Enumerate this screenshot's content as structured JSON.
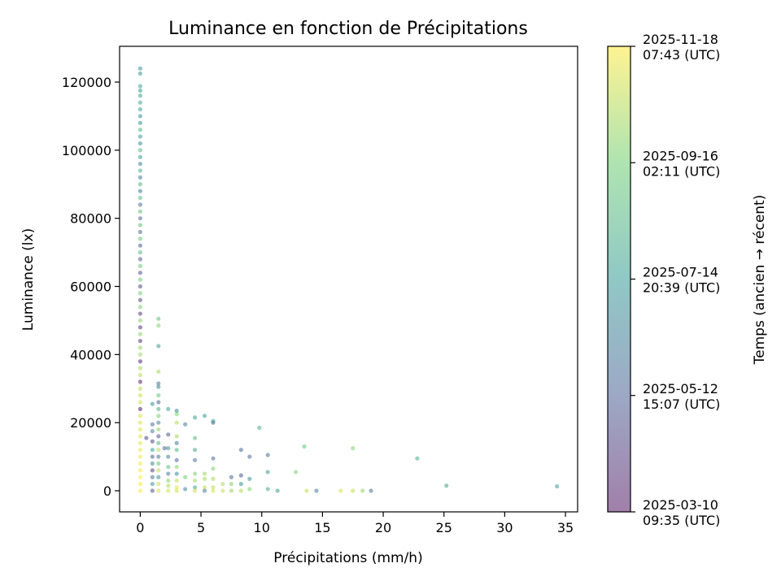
{
  "chart_data": {
    "type": "scatter",
    "title": "Luminance en fonction de Précipitations",
    "xlabel": "Précipitations (mm/h)",
    "ylabel": "Luminance (lx)",
    "xlim": [
      -1.7,
      36
    ],
    "ylim": [
      -6200,
      130500
    ],
    "x_ticks": [
      0,
      5,
      10,
      15,
      20,
      25,
      30,
      35
    ],
    "y_ticks": [
      0,
      20000,
      40000,
      60000,
      80000,
      100000,
      120000
    ],
    "grid": false,
    "colormap": "viridis",
    "marker_alpha": 0.5,
    "colorbar": {
      "label": "Temps (ancien → récent)",
      "range": [
        "2025-03-10T09:35Z",
        "2025-11-18T07:43Z"
      ],
      "ticks": [
        {
          "date": "2025-03-10T09:35Z",
          "line1": "2025-03-10",
          "line2": "09:35 (UTC)"
        },
        {
          "date": "2025-05-12T15:07Z",
          "line1": "2025-05-12",
          "line2": "15:07 (UTC)"
        },
        {
          "date": "2025-07-14T20:39Z",
          "line1": "2025-07-14",
          "line2": "20:39 (UTC)"
        },
        {
          "date": "2025-09-16T02:11Z",
          "line1": "2025-09-16",
          "line2": "02:11 (UTC)"
        },
        {
          "date": "2025-11-18T07:43Z",
          "line1": "2025-11-18",
          "line2": "07:43 (UTC)"
        }
      ]
    },
    "points_format": [
      "precipitation_mm_h",
      "luminance_lx",
      "time_utc"
    ],
    "points": [
      [
        0,
        124000,
        "2025-07-06T12:00Z"
      ],
      [
        0,
        122500,
        "2025-07-10T12:00Z"
      ],
      [
        0,
        118800,
        "2025-07-22T12:00Z"
      ],
      [
        0,
        117500,
        "2025-07-12T12:00Z"
      ],
      [
        0,
        116000,
        "2025-07-26T12:00Z"
      ],
      [
        0,
        114000,
        "2025-08-02T12:00Z"
      ],
      [
        0,
        112000,
        "2025-07-18T12:00Z"
      ],
      [
        0,
        110000,
        "2025-06-30T12:00Z"
      ],
      [
        0,
        108000,
        "2025-07-04T12:00Z"
      ],
      [
        0,
        106000,
        "2025-08-10T12:00Z"
      ],
      [
        0,
        104000,
        "2025-07-08T12:00Z"
      ],
      [
        0,
        102000,
        "2025-06-24T12:00Z"
      ],
      [
        0,
        100000,
        "2025-08-18T12:00Z"
      ],
      [
        0,
        98000,
        "2025-07-16T12:00Z"
      ],
      [
        0,
        96000,
        "2025-06-18T12:00Z"
      ],
      [
        0,
        94000,
        "2025-08-06T12:00Z"
      ],
      [
        0,
        92000,
        "2025-06-12T12:00Z"
      ],
      [
        0,
        90000,
        "2025-08-14T12:00Z"
      ],
      [
        0,
        88000,
        "2025-06-02T12:00Z"
      ],
      [
        0,
        86000,
        "2025-08-24T12:00Z"
      ],
      [
        0,
        84000,
        "2025-05-28T12:00Z"
      ],
      [
        0,
        82000,
        "2025-09-01T12:00Z"
      ],
      [
        0,
        80000,
        "2025-05-22T12:00Z"
      ],
      [
        0,
        78000,
        "2025-08-28T12:00Z"
      ],
      [
        0,
        76000,
        "2025-05-16T12:00Z"
      ],
      [
        0,
        74000,
        "2025-09-05T12:00Z"
      ],
      [
        0,
        72000,
        "2025-05-10T12:00Z"
      ],
      [
        0,
        70000,
        "2025-08-20T12:00Z"
      ],
      [
        0,
        68000,
        "2025-05-04T12:00Z"
      ],
      [
        0,
        66000,
        "2025-09-09T12:00Z"
      ],
      [
        0,
        64000,
        "2025-04-28T12:00Z"
      ],
      [
        0,
        62000,
        "2025-09-13T12:00Z"
      ],
      [
        0,
        60000,
        "2025-04-22T12:00Z"
      ],
      [
        0,
        58000,
        "2025-09-17T12:00Z"
      ],
      [
        0,
        56000,
        "2025-04-16T12:00Z"
      ],
      [
        0,
        54000,
        "2025-09-21T12:00Z"
      ],
      [
        0,
        52000,
        "2025-04-10T12:00Z"
      ],
      [
        0,
        50000,
        "2025-09-25T12:00Z"
      ],
      [
        0,
        48000,
        "2025-04-04T12:00Z"
      ],
      [
        0,
        46000,
        "2025-09-29T12:00Z"
      ],
      [
        0,
        44000,
        "2025-03-30T12:00Z"
      ],
      [
        0,
        42000,
        "2025-10-03T12:00Z"
      ],
      [
        0,
        40000,
        "2025-10-07T12:00Z"
      ],
      [
        0,
        38000,
        "2025-03-24T12:00Z"
      ],
      [
        0,
        36000,
        "2025-10-11T12:00Z"
      ],
      [
        0,
        34000,
        "2025-10-15T12:00Z"
      ],
      [
        0,
        32000,
        "2025-03-18T12:00Z"
      ],
      [
        0,
        30000,
        "2025-10-19T12:00Z"
      ],
      [
        0,
        28000,
        "2025-10-23T12:00Z"
      ],
      [
        0,
        26000,
        "2025-10-27T12:00Z"
      ],
      [
        0,
        24000,
        "2025-03-14T12:00Z"
      ],
      [
        0,
        22000,
        "2025-10-31T12:00Z"
      ],
      [
        0,
        20000,
        "2025-11-02T12:00Z"
      ],
      [
        0,
        18000,
        "2025-11-04T12:00Z"
      ],
      [
        0,
        16000,
        "2025-11-06T12:00Z"
      ],
      [
        0,
        14000,
        "2025-11-08T12:00Z"
      ],
      [
        0,
        12000,
        "2025-11-10T12:00Z"
      ],
      [
        0,
        10000,
        "2025-11-12T12:00Z"
      ],
      [
        0,
        8000,
        "2025-11-14T12:00Z"
      ],
      [
        0,
        6000,
        "2025-11-16T12:00Z"
      ],
      [
        0,
        4000,
        "2025-11-17T12:00Z"
      ],
      [
        0,
        2000,
        "2025-11-18T00:00Z"
      ],
      [
        0,
        0,
        "2025-11-18T07:00Z"
      ],
      [
        0.5,
        15500,
        "2025-04-20T12:00Z"
      ],
      [
        1.0,
        25500,
        "2025-06-30T12:00Z"
      ],
      [
        1.0,
        19500,
        "2025-05-20T12:00Z"
      ],
      [
        1.0,
        17500,
        "2025-06-10T12:00Z"
      ],
      [
        1.0,
        14500,
        "2025-04-20T12:00Z"
      ],
      [
        1.0,
        12000,
        "2025-07-20T12:00Z"
      ],
      [
        1.0,
        10000,
        "2025-05-05T12:00Z"
      ],
      [
        1.0,
        8000,
        "2025-06-20T12:00Z"
      ],
      [
        1.0,
        6000,
        "2025-04-10T12:00Z"
      ],
      [
        1.0,
        4000,
        "2025-05-25T12:00Z"
      ],
      [
        1.0,
        2000,
        "2025-07-05T12:00Z"
      ],
      [
        1.0,
        0,
        "2025-04-25T12:00Z"
      ],
      [
        1.5,
        50500,
        "2025-09-01T12:00Z"
      ],
      [
        1.5,
        48500,
        "2025-09-25T12:00Z"
      ],
      [
        1.5,
        42500,
        "2025-07-20T12:00Z"
      ],
      [
        1.5,
        35000,
        "2025-10-10T12:00Z"
      ],
      [
        1.5,
        31500,
        "2025-06-05T12:00Z"
      ],
      [
        1.5,
        30500,
        "2025-06-25T12:00Z"
      ],
      [
        1.5,
        28000,
        "2025-09-10T12:00Z"
      ],
      [
        1.5,
        26000,
        "2025-05-15T12:00Z"
      ],
      [
        1.5,
        24000,
        "2025-08-05T12:00Z"
      ],
      [
        1.5,
        22000,
        "2025-09-20T12:00Z"
      ],
      [
        1.5,
        20000,
        "2025-06-15T12:00Z"
      ],
      [
        1.5,
        18000,
        "2025-10-01T12:00Z"
      ],
      [
        1.5,
        16000,
        "2025-05-01T12:00Z"
      ],
      [
        1.5,
        14000,
        "2025-08-15T12:00Z"
      ],
      [
        1.5,
        12000,
        "2025-10-15T12:00Z"
      ],
      [
        1.5,
        10000,
        "2025-06-01T12:00Z"
      ],
      [
        1.5,
        8000,
        "2025-09-05T12:00Z"
      ],
      [
        1.5,
        6000,
        "2025-10-20T12:00Z"
      ],
      [
        1.5,
        4000,
        "2025-07-01T12:00Z"
      ],
      [
        1.5,
        2000,
        "2025-10-25T12:00Z"
      ],
      [
        1.5,
        0,
        "2025-11-01T12:00Z"
      ],
      [
        2.0,
        12500,
        "2025-05-10T12:00Z"
      ],
      [
        2.3,
        24000,
        "2025-07-25T12:00Z"
      ],
      [
        2.3,
        16500,
        "2025-05-05T12:00Z"
      ],
      [
        2.3,
        12500,
        "2025-07-05T12:00Z"
      ],
      [
        2.3,
        10000,
        "2025-06-15T12:00Z"
      ],
      [
        2.3,
        7000,
        "2025-08-25T12:00Z"
      ],
      [
        2.3,
        5000,
        "2025-06-10T12:00Z"
      ],
      [
        2.3,
        3000,
        "2025-09-25T12:00Z"
      ],
      [
        2.3,
        1500,
        "2025-10-15T12:00Z"
      ],
      [
        2.3,
        0,
        "2025-10-30T12:00Z"
      ],
      [
        3.0,
        23500,
        "2025-06-20T12:00Z"
      ],
      [
        3.0,
        22500,
        "2025-09-20T12:00Z"
      ],
      [
        3.0,
        20000,
        "2025-10-15T12:00Z"
      ],
      [
        3.0,
        16000,
        "2025-10-10T12:00Z"
      ],
      [
        3.0,
        14000,
        "2025-06-05T12:00Z"
      ],
      [
        3.0,
        12000,
        "2025-08-15T12:00Z"
      ],
      [
        3.0,
        9000,
        "2025-05-15T12:00Z"
      ],
      [
        3.0,
        7000,
        "2025-09-30T12:00Z"
      ],
      [
        3.0,
        5000,
        "2025-06-25T12:00Z"
      ],
      [
        3.0,
        3000,
        "2025-10-20T12:00Z"
      ],
      [
        3.0,
        1000,
        "2025-11-05T12:00Z"
      ],
      [
        3.0,
        0,
        "2025-10-28T12:00Z"
      ],
      [
        3.7,
        19500,
        "2025-06-10T12:00Z"
      ],
      [
        3.7,
        4000,
        "2025-09-15T12:00Z"
      ],
      [
        3.7,
        500,
        "2025-06-20T12:00Z"
      ],
      [
        4.5,
        21500,
        "2025-07-20T12:00Z"
      ],
      [
        4.5,
        15500,
        "2025-08-20T12:00Z"
      ],
      [
        4.5,
        12000,
        "2025-08-01T12:00Z"
      ],
      [
        4.5,
        9000,
        "2025-05-25T12:00Z"
      ],
      [
        4.5,
        5000,
        "2025-09-20T12:00Z"
      ],
      [
        4.5,
        3000,
        "2025-10-10T12:00Z"
      ],
      [
        4.5,
        1000,
        "2025-07-25T12:00Z"
      ],
      [
        4.5,
        0,
        "2025-10-25T12:00Z"
      ],
      [
        5.3,
        22000,
        "2025-07-15T12:00Z"
      ],
      [
        5.3,
        5000,
        "2025-10-05T12:00Z"
      ],
      [
        5.3,
        3500,
        "2025-10-12T12:00Z"
      ],
      [
        5.3,
        1000,
        "2025-10-20T12:00Z"
      ],
      [
        5.3,
        0,
        "2025-06-10T12:00Z"
      ],
      [
        6.0,
        20000,
        "2025-05-05T12:00Z"
      ],
      [
        6.0,
        20500,
        "2025-07-25T12:00Z"
      ],
      [
        6.0,
        9500,
        "2025-05-20T12:00Z"
      ],
      [
        6.0,
        6500,
        "2025-09-25T12:00Z"
      ],
      [
        6.0,
        3500,
        "2025-10-10T12:00Z"
      ],
      [
        6.0,
        1000,
        "2025-10-20T12:00Z"
      ],
      [
        6.0,
        0,
        "2025-11-01T12:00Z"
      ],
      [
        6.8,
        2000,
        "2025-10-15T12:00Z"
      ],
      [
        6.8,
        0,
        "2025-10-25T12:00Z"
      ],
      [
        7.5,
        4000,
        "2025-05-15T12:00Z"
      ],
      [
        7.5,
        2000,
        "2025-09-25T12:00Z"
      ],
      [
        7.5,
        0,
        "2025-10-05T12:00Z"
      ],
      [
        8.3,
        12000,
        "2025-05-10T12:00Z"
      ],
      [
        8.3,
        4500,
        "2025-05-05T12:00Z"
      ],
      [
        8.3,
        2000,
        "2025-07-01T12:00Z"
      ],
      [
        8.3,
        0,
        "2025-10-15T12:00Z"
      ],
      [
        9.0,
        10000,
        "2025-05-20T12:00Z"
      ],
      [
        9.0,
        3500,
        "2025-07-05T12:00Z"
      ],
      [
        9.0,
        500,
        "2025-09-25T12:00Z"
      ],
      [
        9.8,
        18500,
        "2025-08-05T12:00Z"
      ],
      [
        10.5,
        10500,
        "2025-05-25T12:00Z"
      ],
      [
        10.5,
        5500,
        "2025-07-15T12:00Z"
      ],
      [
        10.5,
        500,
        "2025-08-05T12:00Z"
      ],
      [
        11.3,
        0,
        "2025-07-20T12:00Z"
      ],
      [
        12.8,
        5500,
        "2025-09-20T12:00Z"
      ],
      [
        13.5,
        13000,
        "2025-09-05T12:00Z"
      ],
      [
        13.7,
        0,
        "2025-10-25T12:00Z"
      ],
      [
        14.5,
        0,
        "2025-06-10T12:00Z"
      ],
      [
        16.5,
        0,
        "2025-11-01T12:00Z"
      ],
      [
        17.5,
        12500,
        "2025-09-25T12:00Z"
      ],
      [
        17.5,
        0,
        "2025-10-20T12:00Z"
      ],
      [
        18.3,
        0,
        "2025-10-01T12:00Z"
      ],
      [
        19.0,
        0,
        "2025-06-01T12:00Z"
      ],
      [
        22.8,
        9500,
        "2025-08-01T12:00Z"
      ],
      [
        25.2,
        1500,
        "2025-07-25T12:00Z"
      ],
      [
        34.3,
        1300,
        "2025-07-20T12:00Z"
      ]
    ]
  }
}
